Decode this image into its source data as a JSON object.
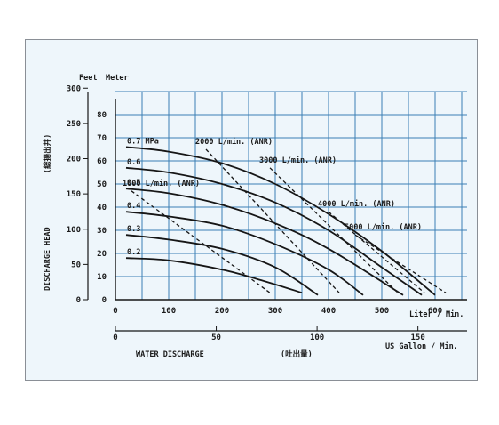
{
  "chart_data": {
    "type": "line",
    "xlabel": "WATER DISCHARGE",
    "xlabel_jp": "(吐出量)",
    "ylabel": "DISCHARGE HEAD",
    "ylabel_jp": "(総揚出井)",
    "y_feet_title": "Feet",
    "y_meter_title": "Meter",
    "x_liter_unit": "Liter / Min.",
    "x_gallon_unit": "US Gallon / Min.",
    "x_liter_ticks": [
      0,
      100,
      200,
      300,
      400,
      500,
      600
    ],
    "x_gallon_ticks": [
      0,
      50,
      100,
      150
    ],
    "y_meter_ticks": [
      0,
      10,
      20,
      30,
      40,
      50,
      60,
      70,
      80
    ],
    "y_feet_ticks": [
      0,
      50,
      100,
      150,
      200,
      250,
      300
    ],
    "xlim": [
      0,
      660
    ],
    "ylim": [
      0,
      90
    ],
    "grid": true,
    "series": [
      {
        "name": "0.7 MPa",
        "label": "0.7 MPa",
        "x": [
          20,
          100,
          200,
          300,
          400,
          500,
          600
        ],
        "y": [
          66,
          64,
          59,
          50,
          37,
          21,
          2
        ]
      },
      {
        "name": "0.6",
        "label": "0.6",
        "x": [
          20,
          100,
          200,
          300,
          400,
          500,
          575
        ],
        "y": [
          57,
          55,
          50,
          42,
          30,
          14,
          2
        ]
      },
      {
        "name": "0.5",
        "label": "0.5",
        "x": [
          20,
          100,
          200,
          300,
          400,
          540
        ],
        "y": [
          48,
          46,
          41,
          33,
          22,
          2
        ]
      },
      {
        "name": "0.4",
        "label": "0.4",
        "x": [
          20,
          100,
          200,
          300,
          400,
          465
        ],
        "y": [
          38,
          36,
          32,
          24,
          13,
          2
        ]
      },
      {
        "name": "0.3",
        "label": "0.3",
        "x": [
          20,
          100,
          200,
          300,
          380
        ],
        "y": [
          28,
          26,
          22,
          14,
          2
        ]
      },
      {
        "name": "0.2",
        "label": "0.2",
        "x": [
          20,
          100,
          200,
          280,
          350
        ],
        "y": [
          18,
          17,
          13,
          8,
          3
        ]
      }
    ],
    "air_consumption": [
      {
        "label": "1000 L/min. (ANR)",
        "x": [
          30,
          290
        ],
        "y": [
          47,
          3
        ]
      },
      {
        "label": "2000 L/min. (ANR)",
        "x": [
          170,
          420
        ],
        "y": [
          65,
          3
        ]
      },
      {
        "label": "3000 L/min. (ANR)",
        "x": [
          290,
          530
        ],
        "y": [
          57,
          3
        ]
      },
      {
        "label": "4000 L/min. (ANR)",
        "x": [
          400,
          580
        ],
        "y": [
          38,
          3
        ]
      },
      {
        "label": "5000 L/min. (ANR)",
        "x": [
          450,
          620
        ],
        "y": [
          28,
          3
        ]
      }
    ]
  }
}
